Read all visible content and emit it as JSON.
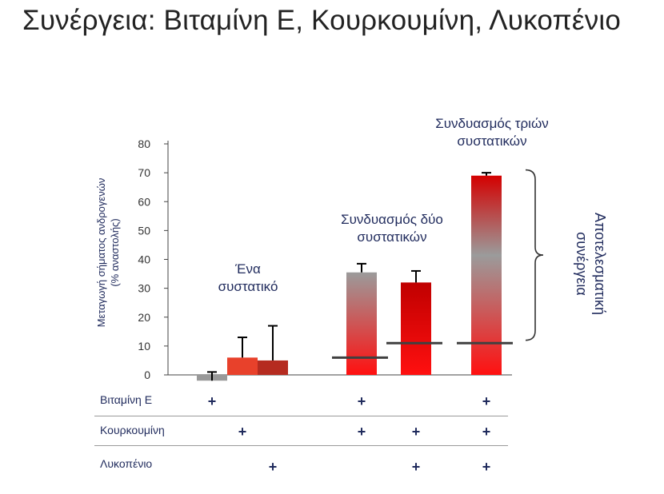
{
  "title": "Συνέργεια: Βιταμίνη Ε, Κουρκουμίνη, Λυκοπένιο",
  "chart_data": {
    "type": "bar",
    "ylabel": "Μεταγωγή σήματος ανδρογενών (% αναστολής)",
    "ylim": [
      0,
      80
    ],
    "yticks": [
      "0",
      "10",
      "20",
      "30",
      "40",
      "50",
      "60",
      "70",
      "80"
    ],
    "grid": false,
    "legend": "none",
    "bars": [
      {
        "value": -2,
        "error": 3,
        "color": "#999999",
        "components": [
          "Βιταμίνη Ε"
        ]
      },
      {
        "value": 6,
        "error": 7,
        "color": "#e8412b",
        "components": [
          "Κουρκουμίνη"
        ]
      },
      {
        "value": 5,
        "error": 12,
        "color": "#b52b20",
        "components": [
          "Λυκοπένιο"
        ]
      },
      {
        "value": 35.5,
        "error": 3,
        "expected": 6,
        "color_top": "#9b9b9b",
        "color_bottom": "#ff1010",
        "components": [
          "Βιταμίνη Ε",
          "Κουρκουμίνη"
        ]
      },
      {
        "value": 32,
        "error": 4,
        "expected": 11,
        "color_top": "#c00000",
        "color_bottom": "#ff1010",
        "components": [
          "Κουρκουμίνη",
          "Λυκοπένιο"
        ]
      },
      {
        "value": 69,
        "error": 1,
        "expected": 11,
        "color_top": "#d40000",
        "color_bottom": "#ff1010",
        "components": [
          "Βιταμίνη Ε",
          "Κουρκουμίνη",
          "Λυκοπένιο"
        ]
      }
    ],
    "annotations": {
      "single": "Ένα συστατικό",
      "double": "Συνδυασμός δύο συστατικών",
      "triple": "Συνδυασμός τριών συστατικών",
      "synergy": "Αποτελεσματική συνέργεια"
    }
  },
  "ylabel_lines": [
    "Μεταγωγή σήματος ανδρογενών",
    "(% αναστολής)"
  ],
  "annotations": {
    "single": [
      "Ένα",
      "συστατικό"
    ],
    "double": [
      "Συνδυασμός δύο",
      "συστατικών"
    ],
    "triple": [
      "Συνδυασμός τριών",
      "συστατικών"
    ],
    "synergy": [
      "Αποτελεσματική",
      "συνέργεια"
    ]
  },
  "table": {
    "rows": [
      {
        "label": "Βιταμίνη Ε",
        "marks": [
          true,
          false,
          false,
          true,
          false,
          true
        ]
      },
      {
        "label": "Κουρκουμίνη",
        "marks": [
          false,
          true,
          false,
          true,
          true,
          true
        ]
      },
      {
        "label": "Λυκοπένιο",
        "marks": [
          false,
          false,
          true,
          false,
          true,
          true
        ]
      }
    ],
    "mark_symbol": "+"
  },
  "colors": {
    "text_dark_blue": "#1f2a5c",
    "axis": "#444444",
    "expected_line": "#404040"
  }
}
